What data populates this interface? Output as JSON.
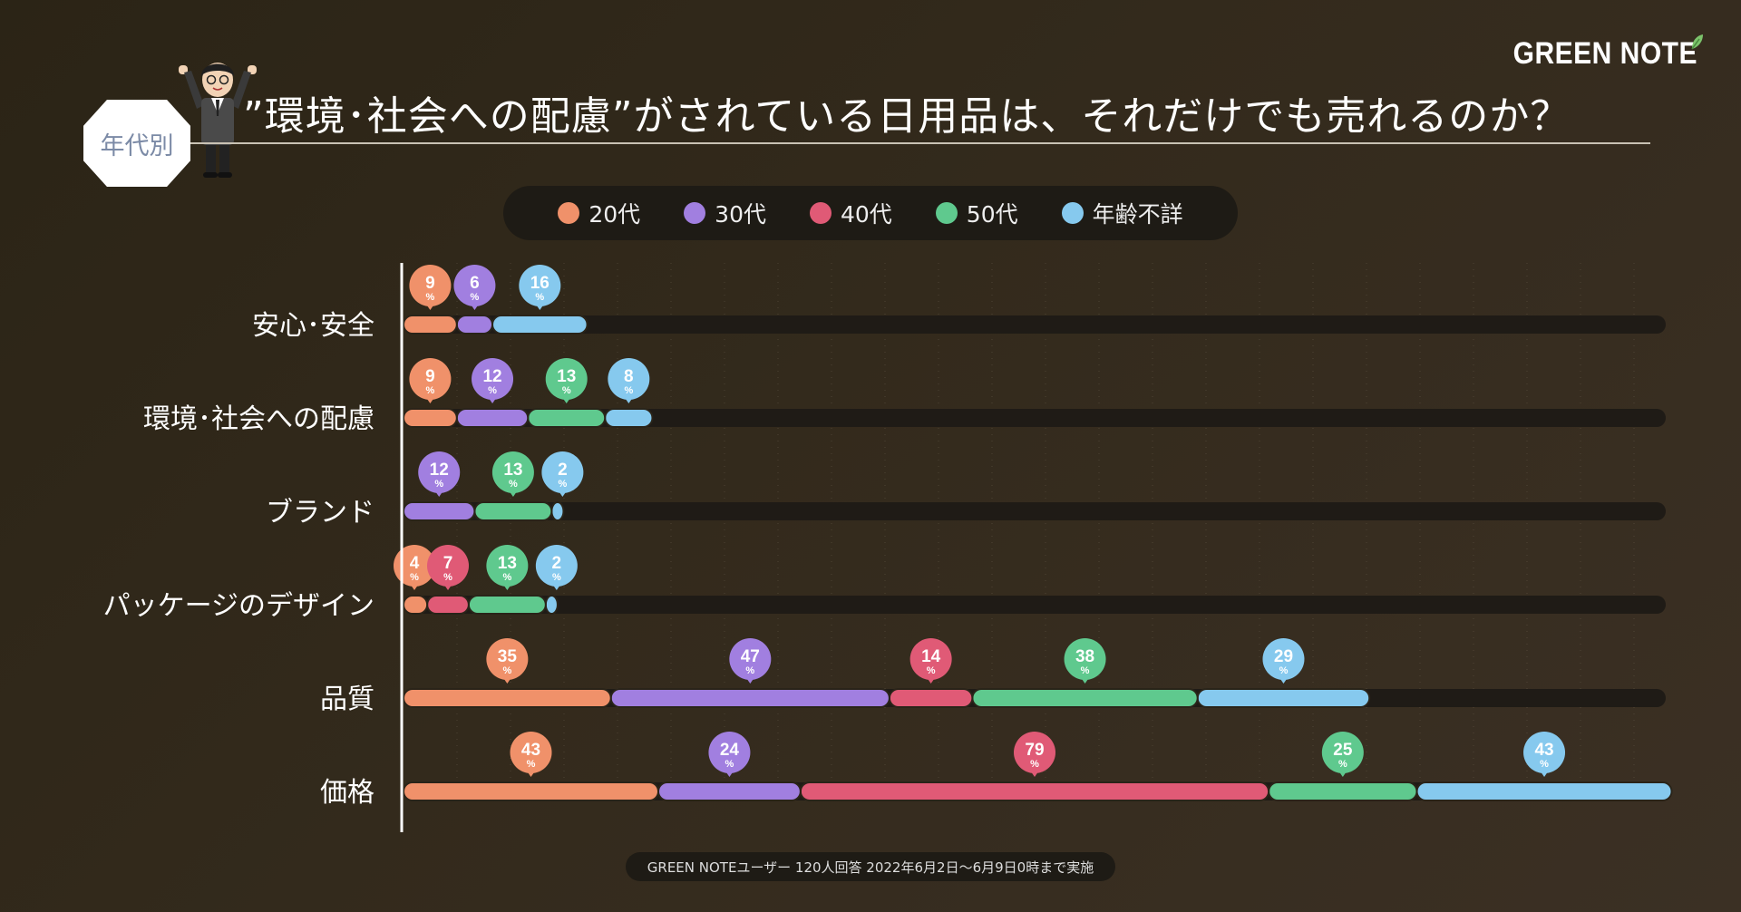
{
  "header": {
    "title": "”環境･社会への配慮”がされている日用品は、それだけでも売れるのか？",
    "badge": "年代別",
    "brand": "GREEN NOTE"
  },
  "footer": {
    "note": "GREEN NOTEユーザー 120人回答 2022年6月2日〜6月9日0時まで実施"
  },
  "colors": {
    "20代": "#f0916a",
    "30代": "#a17fe0",
    "40代": "#e05a76",
    "50代": "#5fc98e",
    "年齢不詳": "#86c9ee",
    "track": "#1f1b16"
  },
  "chart_data": {
    "type": "bar",
    "orientation": "horizontal",
    "stacked": true,
    "unit": "%",
    "categories": [
      "安心･安全",
      "環境･社会への配慮",
      "ブランド",
      "パッケージのデザイン",
      "品質",
      "価格"
    ],
    "series": [
      {
        "name": "20代",
        "values": [
          9,
          9,
          0,
          4,
          35,
          43
        ]
      },
      {
        "name": "30代",
        "values": [
          6,
          12,
          12,
          0,
          47,
          24
        ]
      },
      {
        "name": "40代",
        "values": [
          0,
          0,
          0,
          7,
          14,
          79
        ]
      },
      {
        "name": "50代",
        "values": [
          0,
          13,
          13,
          13,
          38,
          25
        ]
      },
      {
        "name": "年齢不詳",
        "values": [
          16,
          8,
          2,
          2,
          29,
          43
        ]
      }
    ],
    "xlim": [
      0,
      213
    ],
    "grid": true,
    "legend": "top-center"
  }
}
